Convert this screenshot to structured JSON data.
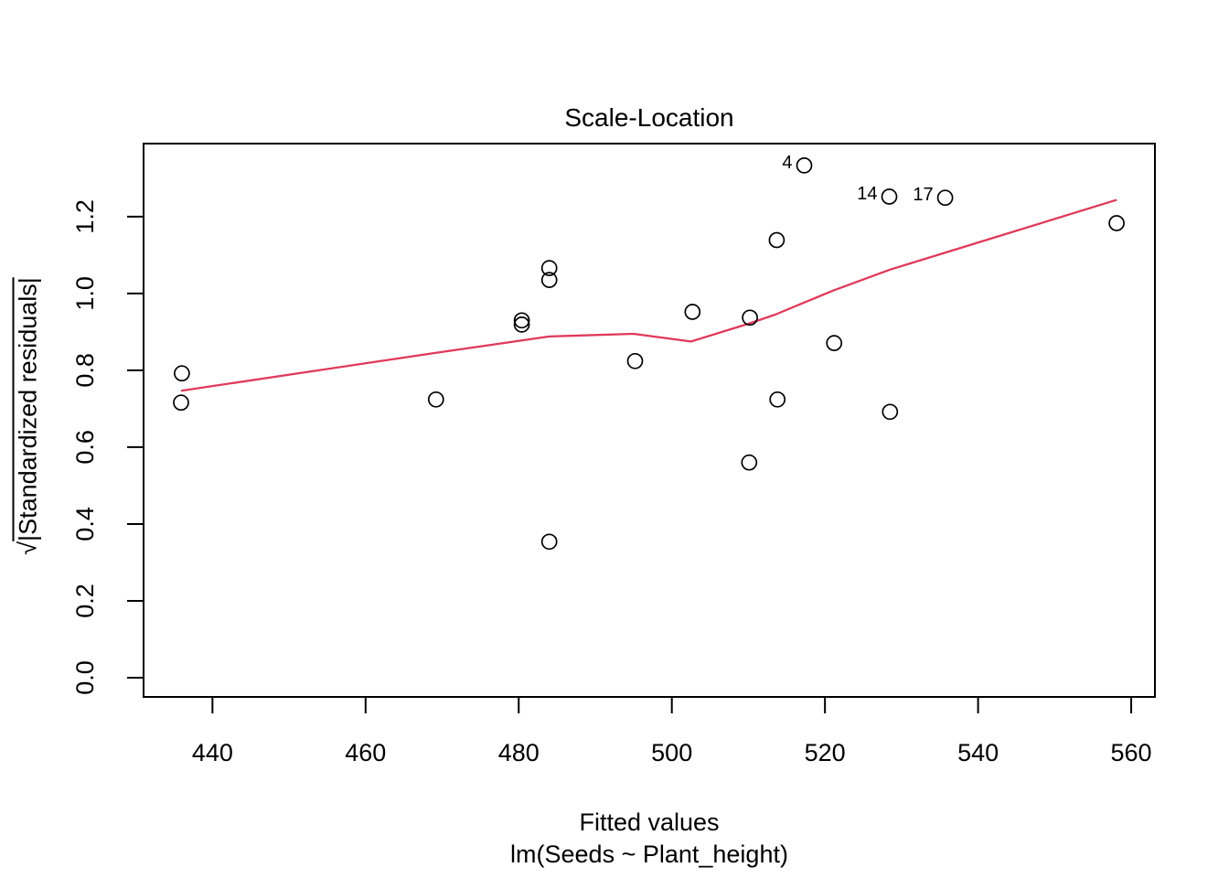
{
  "chart_data": {
    "type": "scatter",
    "title": "Scale-Location",
    "xlabel": "Fitted values",
    "model_caption": "lm(Seeds ~ Plant_height)",
    "ylabel_sqrt": "√",
    "ylabel_rest": "|Standardized residuals|",
    "ylabel_plain": "√|Standardized residuals|",
    "xlim": [
      431.0,
      563.1
    ],
    "ylim": [
      -0.05,
      1.39
    ],
    "grid": false,
    "legend_position": "none",
    "axis_color": "#000000",
    "point_color": "#000000",
    "x_ticks": [
      {
        "v": 440,
        "label": "440"
      },
      {
        "v": 460,
        "label": "460"
      },
      {
        "v": 480,
        "label": "480"
      },
      {
        "v": 500,
        "label": "500"
      },
      {
        "v": 520,
        "label": "520"
      },
      {
        "v": 540,
        "label": "540"
      },
      {
        "v": 560,
        "label": "560"
      }
    ],
    "y_ticks": [
      {
        "v": 0.0,
        "label": "0.0"
      },
      {
        "v": 0.2,
        "label": "0.2"
      },
      {
        "v": 0.4,
        "label": "0.4"
      },
      {
        "v": 0.6,
        "label": "0.6"
      },
      {
        "v": 0.8,
        "label": "0.8"
      },
      {
        "v": 1.0,
        "label": "1.0"
      },
      {
        "v": 1.2,
        "label": "1.2"
      }
    ],
    "points": [
      {
        "x": 436.0,
        "y": 0.792
      },
      {
        "x": 435.9,
        "y": 0.716
      },
      {
        "x": 469.2,
        "y": 0.724
      },
      {
        "x": 480.4,
        "y": 0.93
      },
      {
        "x": 480.4,
        "y": 0.919
      },
      {
        "x": 484.0,
        "y": 1.066
      },
      {
        "x": 484.0,
        "y": 1.035
      },
      {
        "x": 484.0,
        "y": 0.354
      },
      {
        "x": 495.2,
        "y": 0.824
      },
      {
        "x": 502.7,
        "y": 0.952
      },
      {
        "x": 510.2,
        "y": 0.937
      },
      {
        "x": 510.1,
        "y": 0.56
      },
      {
        "x": 513.7,
        "y": 1.139
      },
      {
        "x": 513.8,
        "y": 0.724
      },
      {
        "x": 517.3,
        "y": 1.333,
        "label": "4"
      },
      {
        "x": 521.2,
        "y": 0.871
      },
      {
        "x": 528.4,
        "y": 1.252,
        "label": "14"
      },
      {
        "x": 528.5,
        "y": 0.692
      },
      {
        "x": 535.7,
        "y": 1.249,
        "label": "17"
      },
      {
        "x": 558.1,
        "y": 1.183
      }
    ],
    "smooth_line": {
      "color": "#e0395a",
      "points": [
        [
          436.0,
          0.747
        ],
        [
          469.0,
          0.845
        ],
        [
          480.5,
          0.878
        ],
        [
          484.0,
          0.888
        ],
        [
          495.0,
          0.895
        ],
        [
          502.5,
          0.875
        ],
        [
          510.0,
          0.921
        ],
        [
          513.5,
          0.945
        ],
        [
          517.5,
          0.978
        ],
        [
          521.0,
          1.007
        ],
        [
          528.5,
          1.062
        ],
        [
          536.0,
          1.108
        ],
        [
          558.0,
          1.243
        ]
      ]
    }
  }
}
